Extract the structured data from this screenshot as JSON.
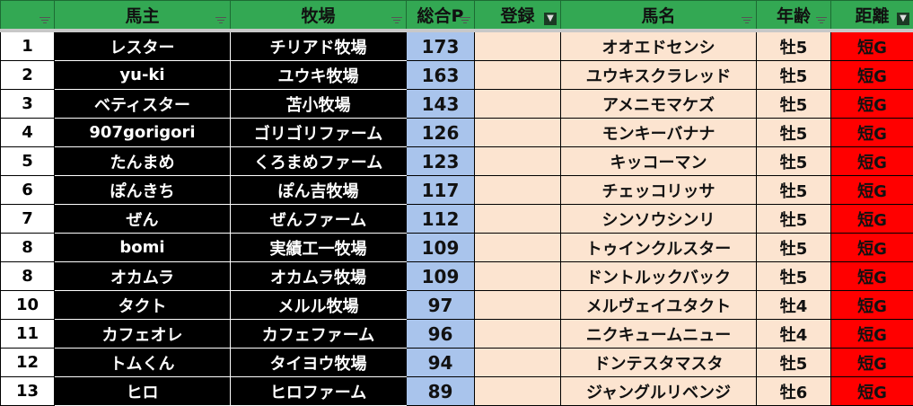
{
  "headers": [
    "",
    "馬主",
    "牧場",
    "総合P",
    "登録",
    "馬名",
    "年齢",
    "距離"
  ],
  "active_filters": [
    "登録",
    "距離"
  ],
  "colors": {
    "header": "#33a853",
    "owner_bg": "#000000",
    "points_bg": "#a9c4ec",
    "peach": "#fce4d0",
    "distance_bg": "#ff0000"
  },
  "rows": [
    {
      "rank": "1",
      "owner": "レスター",
      "farm": "チリアド牧場",
      "points": "173",
      "reg": "",
      "horse": "オオエドセンシ",
      "age": "牡5",
      "dist": "短G"
    },
    {
      "rank": "2",
      "owner": "yu-ki",
      "farm": "ユウキ牧場",
      "points": "163",
      "reg": "",
      "horse": "ユウキスクラレッド",
      "age": "牡5",
      "dist": "短G"
    },
    {
      "rank": "3",
      "owner": "ベティスター",
      "farm": "苫小牧場",
      "points": "143",
      "reg": "",
      "horse": "アメニモマケズ",
      "age": "牡5",
      "dist": "短G"
    },
    {
      "rank": "4",
      "owner": "907gorigori",
      "farm": "ゴリゴリファーム",
      "points": "126",
      "reg": "",
      "horse": "モンキーバナナ",
      "age": "牡5",
      "dist": "短G"
    },
    {
      "rank": "5",
      "owner": "たんまめ",
      "farm": "くろまめファーム",
      "points": "123",
      "reg": "",
      "horse": "キッコーマン",
      "age": "牡5",
      "dist": "短G"
    },
    {
      "rank": "6",
      "owner": "ぽんきち",
      "farm": "ぽん吉牧場",
      "points": "117",
      "reg": "",
      "horse": "チェッコリッサ",
      "age": "牡5",
      "dist": "短G"
    },
    {
      "rank": "7",
      "owner": "ぜん",
      "farm": "ぜんファーム",
      "points": "112",
      "reg": "",
      "horse": "シンソウシンリ",
      "age": "牡5",
      "dist": "短G"
    },
    {
      "rank": "8",
      "owner": "bomi",
      "farm": "実績工一牧場",
      "points": "109",
      "reg": "",
      "horse": "トゥインクルスター",
      "age": "牡5",
      "dist": "短G"
    },
    {
      "rank": "8",
      "owner": "オカムラ",
      "farm": "オカムラ牧場",
      "points": "109",
      "reg": "",
      "horse": "ドントルックバック",
      "age": "牡5",
      "dist": "短G"
    },
    {
      "rank": "10",
      "owner": "タクト",
      "farm": "メルル牧場",
      "points": "97",
      "reg": "",
      "horse": "メルヴェイユタクト",
      "age": "牡4",
      "dist": "短G"
    },
    {
      "rank": "11",
      "owner": "カフェオレ",
      "farm": "カフェファーム",
      "points": "96",
      "reg": "",
      "horse": "ニクキュームニュー",
      "age": "牡4",
      "dist": "短G"
    },
    {
      "rank": "12",
      "owner": "トムくん",
      "farm": "タイヨウ牧場",
      "points": "94",
      "reg": "",
      "horse": "ドンテスタマスタ",
      "age": "牡5",
      "dist": "短G"
    },
    {
      "rank": "13",
      "owner": "ヒロ",
      "farm": "ヒロファーム",
      "points": "89",
      "reg": "",
      "horse": "ジャングルリベンジ",
      "age": "牡6",
      "dist": "短G"
    }
  ]
}
